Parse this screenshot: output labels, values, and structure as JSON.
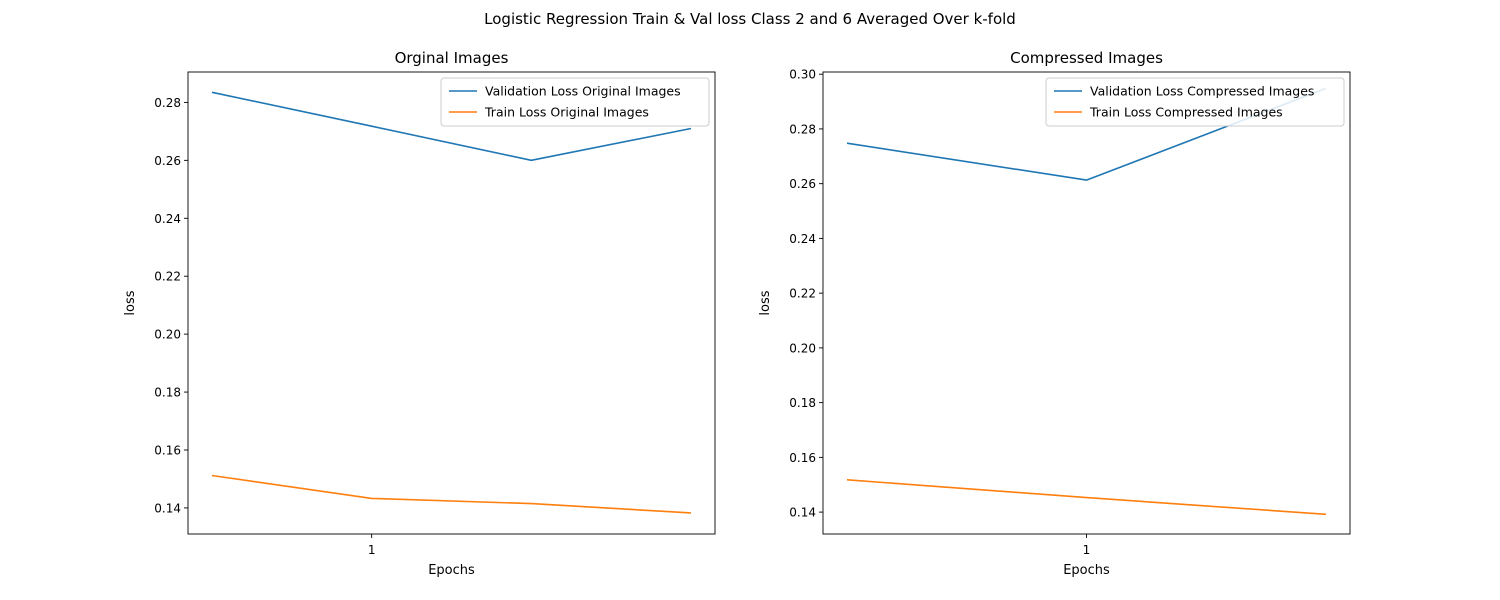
{
  "figure": {
    "title": "Logistic Regression Train & Val loss Class 2 and 6 Averaged Over k-fold"
  },
  "chart_data": [
    {
      "type": "line",
      "title": "Orginal Images",
      "xlabel": "Epochs",
      "ylabel": "loss",
      "xlim": [
        -0.15,
        3.15
      ],
      "ylim": [
        0.131,
        0.2905
      ],
      "x_ticks": [
        {
          "value": 1,
          "label": "1"
        }
      ],
      "y_ticks": [
        0.14,
        0.16,
        0.18,
        0.2,
        0.22,
        0.24,
        0.26,
        0.28
      ],
      "y_tick_labels": [
        "0.14",
        "0.16",
        "0.18",
        "0.20",
        "0.22",
        "0.24",
        "0.26",
        "0.28"
      ],
      "grid": false,
      "legend": "upper-right",
      "x": [
        0,
        1,
        2,
        3
      ],
      "series": [
        {
          "name": "Validation Loss Original Images",
          "color": "#1f77b4",
          "values": [
            0.2835,
            0.2718,
            0.26,
            0.271
          ]
        },
        {
          "name": "Train Loss Original Images",
          "color": "#ff7f0e",
          "values": [
            0.1512,
            0.1433,
            0.1415,
            0.1383
          ]
        }
      ]
    },
    {
      "type": "line",
      "title": "Compressed Images",
      "xlabel": "Epochs",
      "ylabel": "loss",
      "xlim": [
        -0.1,
        2.1
      ],
      "ylim": [
        0.132,
        0.3008
      ],
      "x_ticks": [
        {
          "value": 1,
          "label": "1"
        }
      ],
      "y_ticks": [
        0.14,
        0.16,
        0.18,
        0.2,
        0.22,
        0.24,
        0.26,
        0.28,
        0.3
      ],
      "y_tick_labels": [
        "0.14",
        "0.16",
        "0.18",
        "0.20",
        "0.22",
        "0.24",
        "0.26",
        "0.28",
        "0.30"
      ],
      "grid": false,
      "legend": "upper-right",
      "x": [
        0,
        1,
        2
      ],
      "series": [
        {
          "name": "Validation Loss Compressed Images",
          "color": "#1f77b4",
          "values": [
            0.2748,
            0.2613,
            0.2948
          ]
        },
        {
          "name": "Train Loss Compressed Images",
          "color": "#ff7f0e",
          "values": [
            0.1518,
            0.1453,
            0.1392
          ]
        }
      ]
    }
  ]
}
